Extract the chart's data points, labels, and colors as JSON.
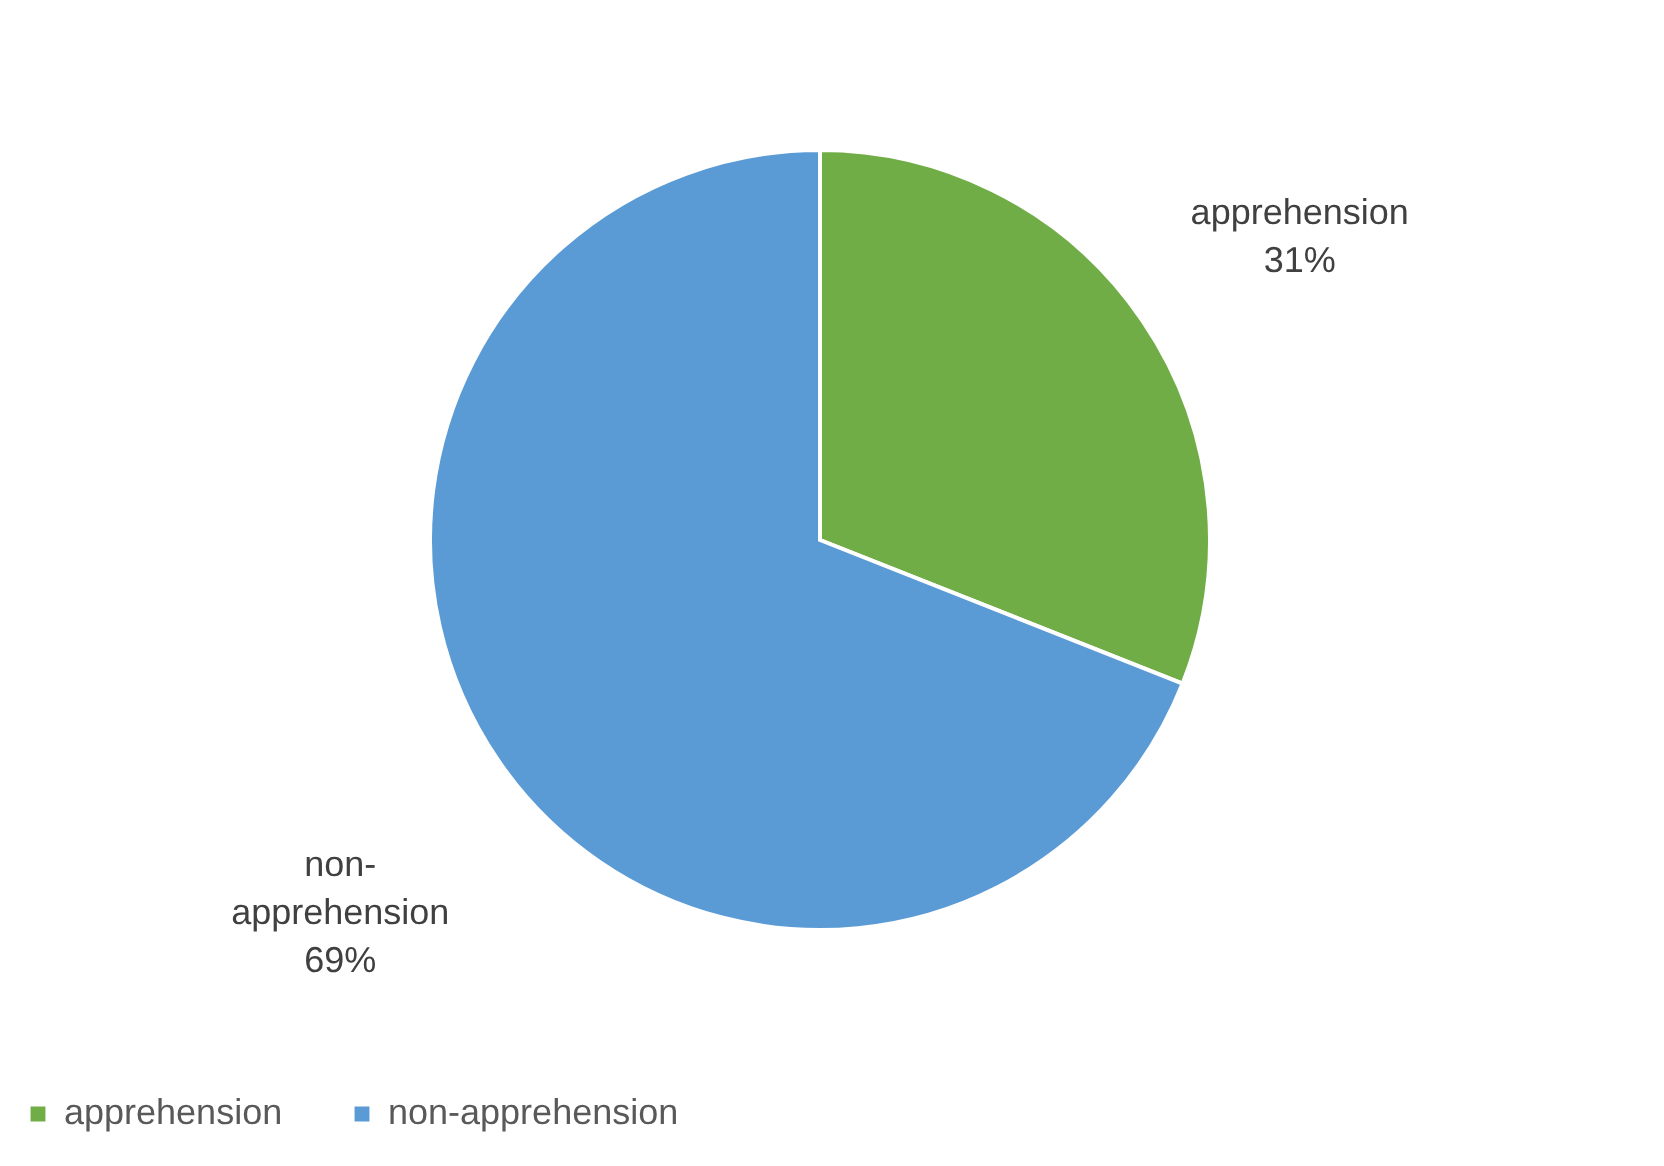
{
  "chart_data": {
    "type": "pie",
    "categories": [
      "apprehension",
      "non-apprehension"
    ],
    "values": [
      31,
      69
    ],
    "colors": [
      "#70ad47",
      "#5b9bd5"
    ],
    "value_labels": [
      "31%",
      "69%"
    ],
    "legend": "bottom"
  }
}
